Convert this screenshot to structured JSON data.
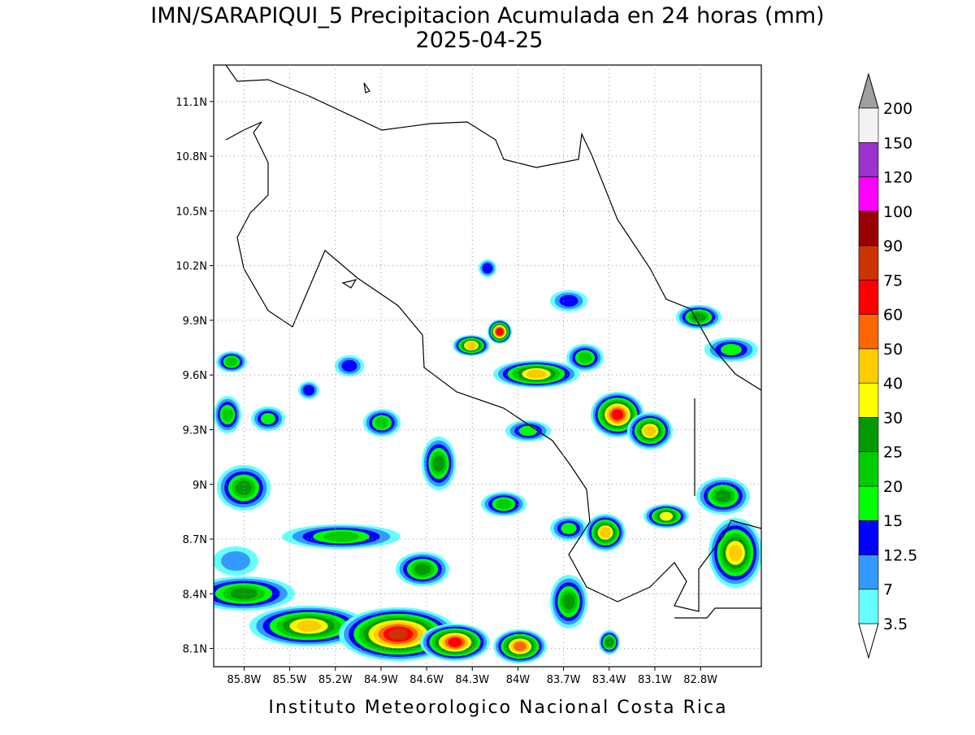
{
  "chart_data": {
    "type": "contour-map",
    "title": "IMN/SARAPIQUI_5 Precipitacion Acumulada en 24 horas (mm)",
    "subtitle": "2025-04-25",
    "footer": "Instituto Meteorologico Nacional Costa Rica",
    "xlim": [
      -86.0,
      -82.4
    ],
    "ylim": [
      8.0,
      11.3
    ],
    "xticks": [
      {
        "value": -85.8,
        "label": "85.8W"
      },
      {
        "value": -85.5,
        "label": "85.5W"
      },
      {
        "value": -85.2,
        "label": "85.2W"
      },
      {
        "value": -84.9,
        "label": "84.9W"
      },
      {
        "value": -84.6,
        "label": "84.6W"
      },
      {
        "value": -84.3,
        "label": "84.3W"
      },
      {
        "value": -84.0,
        "label": "84W"
      },
      {
        "value": -83.7,
        "label": "83.7W"
      },
      {
        "value": -83.4,
        "label": "83.4W"
      },
      {
        "value": -83.1,
        "label": "83.1W"
      },
      {
        "value": -82.8,
        "label": "82.8W"
      }
    ],
    "yticks": [
      {
        "value": 8.1,
        "label": "8.1N"
      },
      {
        "value": 8.4,
        "label": "8.4N"
      },
      {
        "value": 8.7,
        "label": "8.7N"
      },
      {
        "value": 9.0,
        "label": "9N"
      },
      {
        "value": 9.3,
        "label": "9.3N"
      },
      {
        "value": 9.6,
        "label": "9.6N"
      },
      {
        "value": 9.9,
        "label": "9.9N"
      },
      {
        "value": 10.2,
        "label": "10.2N"
      },
      {
        "value": 10.5,
        "label": "10.5N"
      },
      {
        "value": 10.8,
        "label": "10.8N"
      },
      {
        "value": 11.1,
        "label": "11.1N"
      }
    ],
    "grid": true,
    "levels": [
      3.5,
      7,
      12.5,
      15,
      20,
      25,
      30,
      40,
      50,
      60,
      75,
      90,
      100,
      120,
      150,
      200
    ],
    "colors": [
      "#ffffff",
      "#66ffff",
      "#3399ff",
      "#0000ff",
      "#00ff00",
      "#00cc00",
      "#009900",
      "#ffff00",
      "#ffcc00",
      "#ff6600",
      "#ff0000",
      "#cc3300",
      "#990000",
      "#ff00ff",
      "#9933cc",
      "#f2f2f2",
      "#a0a0a0"
    ]
  }
}
